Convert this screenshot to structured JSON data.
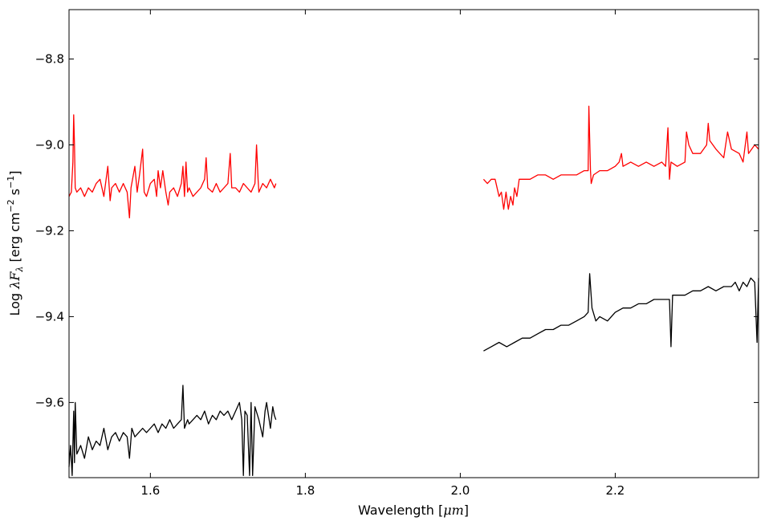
{
  "chart_data": {
    "type": "line",
    "xlabel_text": "Wavelength [",
    "xlabel_unit": "μm",
    "xlabel_end": "]",
    "ylabel_text": "Log ",
    "ylabel_math": "λF",
    "ylabel_sub": "λ",
    "ylabel_unit": " [erg cm",
    "ylabel_sup1": "−2",
    "ylabel_mid": " s",
    "ylabel_sup2": "−1",
    "ylabel_end": "]",
    "xlim": [
      1.495,
      2.385
    ],
    "ylim": [
      -9.775,
      -8.685
    ],
    "xticks": [
      {
        "value": 1.6,
        "label": "1.6"
      },
      {
        "value": 1.8,
        "label": "1.8"
      },
      {
        "value": 2.0,
        "label": "2.0"
      },
      {
        "value": 2.2,
        "label": "2.2"
      }
    ],
    "yticks": [
      {
        "value": -8.8,
        "label": "−8.8"
      },
      {
        "value": -9.0,
        "label": "−9.0"
      },
      {
        "value": -9.2,
        "label": "−9.2"
      },
      {
        "value": -9.4,
        "label": "−9.4"
      },
      {
        "value": -9.6,
        "label": "−9.6"
      }
    ],
    "grid": false,
    "series": [
      {
        "color": "#ff0000",
        "segments": [
          [
            [
              1.495,
              -9.12
            ],
            [
              1.498,
              -9.11
            ],
            [
              1.5,
              -9.04
            ],
            [
              1.501,
              -8.93
            ],
            [
              1.502,
              -9.0
            ],
            [
              1.503,
              -9.1
            ],
            [
              1.505,
              -9.11
            ],
            [
              1.51,
              -9.1
            ],
            [
              1.515,
              -9.12
            ],
            [
              1.52,
              -9.1
            ],
            [
              1.525,
              -9.11
            ],
            [
              1.53,
              -9.09
            ],
            [
              1.535,
              -9.08
            ],
            [
              1.54,
              -9.12
            ],
            [
              1.545,
              -9.05
            ],
            [
              1.548,
              -9.13
            ],
            [
              1.55,
              -9.1
            ],
            [
              1.555,
              -9.09
            ],
            [
              1.56,
              -9.11
            ],
            [
              1.565,
              -9.09
            ],
            [
              1.57,
              -9.11
            ],
            [
              1.573,
              -9.17
            ],
            [
              1.575,
              -9.1
            ],
            [
              1.58,
              -9.05
            ],
            [
              1.583,
              -9.11
            ],
            [
              1.586,
              -9.07
            ],
            [
              1.59,
              -9.01
            ],
            [
              1.592,
              -9.11
            ],
            [
              1.595,
              -9.12
            ],
            [
              1.6,
              -9.09
            ],
            [
              1.605,
              -9.08
            ],
            [
              1.608,
              -9.12
            ],
            [
              1.61,
              -9.06
            ],
            [
              1.613,
              -9.1
            ],
            [
              1.616,
              -9.06
            ],
            [
              1.62,
              -9.11
            ],
            [
              1.623,
              -9.14
            ],
            [
              1.625,
              -9.11
            ],
            [
              1.63,
              -9.1
            ],
            [
              1.635,
              -9.12
            ],
            [
              1.64,
              -9.09
            ],
            [
              1.642,
              -9.05
            ],
            [
              1.644,
              -9.12
            ],
            [
              1.646,
              -9.04
            ],
            [
              1.648,
              -9.11
            ],
            [
              1.65,
              -9.1
            ],
            [
              1.655,
              -9.12
            ],
            [
              1.66,
              -9.11
            ],
            [
              1.665,
              -9.1
            ],
            [
              1.67,
              -9.08
            ],
            [
              1.672,
              -9.03
            ],
            [
              1.674,
              -9.1
            ],
            [
              1.68,
              -9.11
            ],
            [
              1.685,
              -9.09
            ],
            [
              1.69,
              -9.11
            ],
            [
              1.695,
              -9.1
            ],
            [
              1.7,
              -9.09
            ],
            [
              1.703,
              -9.02
            ],
            [
              1.705,
              -9.1
            ],
            [
              1.71,
              -9.1
            ],
            [
              1.715,
              -9.11
            ],
            [
              1.72,
              -9.09
            ],
            [
              1.725,
              -9.1
            ],
            [
              1.73,
              -9.11
            ],
            [
              1.735,
              -9.09
            ],
            [
              1.737,
              -9.0
            ],
            [
              1.739,
              -9.08
            ],
            [
              1.74,
              -9.11
            ],
            [
              1.745,
              -9.09
            ],
            [
              1.75,
              -9.1
            ],
            [
              1.755,
              -9.08
            ],
            [
              1.76,
              -9.1
            ],
            [
              1.762,
              -9.09
            ]
          ],
          [
            [
              2.03,
              -9.08
            ],
            [
              2.035,
              -9.09
            ],
            [
              2.04,
              -9.08
            ],
            [
              2.045,
              -9.08
            ],
            [
              2.05,
              -9.12
            ],
            [
              2.053,
              -9.11
            ],
            [
              2.056,
              -9.15
            ],
            [
              2.059,
              -9.11
            ],
            [
              2.062,
              -9.15
            ],
            [
              2.065,
              -9.12
            ],
            [
              2.068,
              -9.14
            ],
            [
              2.07,
              -9.1
            ],
            [
              2.073,
              -9.12
            ],
            [
              2.076,
              -9.08
            ],
            [
              2.08,
              -9.08
            ],
            [
              2.09,
              -9.08
            ],
            [
              2.1,
              -9.07
            ],
            [
              2.11,
              -9.07
            ],
            [
              2.12,
              -9.08
            ],
            [
              2.13,
              -9.07
            ],
            [
              2.14,
              -9.07
            ],
            [
              2.15,
              -9.07
            ],
            [
              2.16,
              -9.06
            ],
            [
              2.165,
              -9.06
            ],
            [
              2.166,
              -8.91
            ],
            [
              2.168,
              -9.06
            ],
            [
              2.169,
              -9.09
            ],
            [
              2.172,
              -9.07
            ],
            [
              2.18,
              -9.06
            ],
            [
              2.19,
              -9.06
            ],
            [
              2.2,
              -9.05
            ],
            [
              2.205,
              -9.04
            ],
            [
              2.208,
              -9.02
            ],
            [
              2.21,
              -9.05
            ],
            [
              2.22,
              -9.04
            ],
            [
              2.23,
              -9.05
            ],
            [
              2.24,
              -9.04
            ],
            [
              2.25,
              -9.05
            ],
            [
              2.26,
              -9.04
            ],
            [
              2.265,
              -9.05
            ],
            [
              2.268,
              -8.96
            ],
            [
              2.27,
              -9.08
            ],
            [
              2.272,
              -9.04
            ],
            [
              2.28,
              -9.05
            ],
            [
              2.29,
              -9.04
            ],
            [
              2.292,
              -8.97
            ],
            [
              2.295,
              -9.0
            ],
            [
              2.3,
              -9.02
            ],
            [
              2.31,
              -9.02
            ],
            [
              2.318,
              -9.0
            ],
            [
              2.32,
              -8.95
            ],
            [
              2.322,
              -8.99
            ],
            [
              2.33,
              -9.01
            ],
            [
              2.34,
              -9.03
            ],
            [
              2.345,
              -8.97
            ],
            [
              2.35,
              -9.01
            ],
            [
              2.36,
              -9.02
            ],
            [
              2.365,
              -9.04
            ],
            [
              2.37,
              -8.97
            ],
            [
              2.372,
              -9.02
            ],
            [
              2.38,
              -9.0
            ],
            [
              2.385,
              -9.01
            ]
          ]
        ]
      },
      {
        "color": "#000000",
        "segments": [
          [
            [
              1.495,
              -9.75
            ],
            [
              1.497,
              -9.7
            ],
            [
              1.499,
              -9.77
            ],
            [
              1.501,
              -9.62
            ],
            [
              1.502,
              -9.74
            ],
            [
              1.503,
              -9.6
            ],
            [
              1.505,
              -9.72
            ],
            [
              1.51,
              -9.7
            ],
            [
              1.515,
              -9.73
            ],
            [
              1.52,
              -9.68
            ],
            [
              1.525,
              -9.71
            ],
            [
              1.53,
              -9.69
            ],
            [
              1.535,
              -9.7
            ],
            [
              1.54,
              -9.66
            ],
            [
              1.545,
              -9.71
            ],
            [
              1.55,
              -9.68
            ],
            [
              1.555,
              -9.67
            ],
            [
              1.56,
              -9.69
            ],
            [
              1.565,
              -9.67
            ],
            [
              1.57,
              -9.68
            ],
            [
              1.573,
              -9.73
            ],
            [
              1.576,
              -9.66
            ],
            [
              1.58,
              -9.68
            ],
            [
              1.585,
              -9.67
            ],
            [
              1.59,
              -9.66
            ],
            [
              1.595,
              -9.67
            ],
            [
              1.6,
              -9.66
            ],
            [
              1.605,
              -9.65
            ],
            [
              1.61,
              -9.67
            ],
            [
              1.615,
              -9.65
            ],
            [
              1.62,
              -9.66
            ],
            [
              1.625,
              -9.64
            ],
            [
              1.63,
              -9.66
            ],
            [
              1.635,
              -9.65
            ],
            [
              1.64,
              -9.64
            ],
            [
              1.642,
              -9.56
            ],
            [
              1.644,
              -9.66
            ],
            [
              1.648,
              -9.64
            ],
            [
              1.65,
              -9.65
            ],
            [
              1.655,
              -9.64
            ],
            [
              1.66,
              -9.63
            ],
            [
              1.665,
              -9.64
            ],
            [
              1.67,
              -9.62
            ],
            [
              1.675,
              -9.65
            ],
            [
              1.68,
              -9.63
            ],
            [
              1.685,
              -9.64
            ],
            [
              1.69,
              -9.62
            ],
            [
              1.695,
              -9.63
            ],
            [
              1.7,
              -9.62
            ],
            [
              1.705,
              -9.64
            ],
            [
              1.71,
              -9.62
            ],
            [
              1.715,
              -9.6
            ],
            [
              1.718,
              -9.64
            ],
            [
              1.72,
              -9.77
            ],
            [
              1.722,
              -9.62
            ],
            [
              1.725,
              -9.63
            ],
            [
              1.728,
              -9.77
            ],
            [
              1.73,
              -9.6
            ],
            [
              1.732,
              -9.77
            ],
            [
              1.735,
              -9.61
            ],
            [
              1.74,
              -9.64
            ],
            [
              1.745,
              -9.68
            ],
            [
              1.748,
              -9.62
            ],
            [
              1.75,
              -9.6
            ],
            [
              1.755,
              -9.66
            ],
            [
              1.758,
              -9.61
            ],
            [
              1.76,
              -9.63
            ],
            [
              1.762,
              -9.64
            ]
          ],
          [
            [
              2.03,
              -9.48
            ],
            [
              2.04,
              -9.47
            ],
            [
              2.05,
              -9.46
            ],
            [
              2.06,
              -9.47
            ],
            [
              2.07,
              -9.46
            ],
            [
              2.08,
              -9.45
            ],
            [
              2.09,
              -9.45
            ],
            [
              2.1,
              -9.44
            ],
            [
              2.11,
              -9.43
            ],
            [
              2.12,
              -9.43
            ],
            [
              2.13,
              -9.42
            ],
            [
              2.14,
              -9.42
            ],
            [
              2.15,
              -9.41
            ],
            [
              2.16,
              -9.4
            ],
            [
              2.165,
              -9.39
            ],
            [
              2.167,
              -9.3
            ],
            [
              2.17,
              -9.38
            ],
            [
              2.175,
              -9.41
            ],
            [
              2.18,
              -9.4
            ],
            [
              2.19,
              -9.41
            ],
            [
              2.2,
              -9.39
            ],
            [
              2.21,
              -9.38
            ],
            [
              2.22,
              -9.38
            ],
            [
              2.23,
              -9.37
            ],
            [
              2.24,
              -9.37
            ],
            [
              2.25,
              -9.36
            ],
            [
              2.26,
              -9.36
            ],
            [
              2.27,
              -9.36
            ],
            [
              2.272,
              -9.47
            ],
            [
              2.274,
              -9.35
            ],
            [
              2.28,
              -9.35
            ],
            [
              2.29,
              -9.35
            ],
            [
              2.3,
              -9.34
            ],
            [
              2.31,
              -9.34
            ],
            [
              2.32,
              -9.33
            ],
            [
              2.33,
              -9.34
            ],
            [
              2.34,
              -9.33
            ],
            [
              2.35,
              -9.33
            ],
            [
              2.355,
              -9.32
            ],
            [
              2.36,
              -9.34
            ],
            [
              2.365,
              -9.32
            ],
            [
              2.37,
              -9.33
            ],
            [
              2.375,
              -9.31
            ],
            [
              2.38,
              -9.32
            ],
            [
              2.383,
              -9.46
            ],
            [
              2.385,
              -9.31
            ]
          ]
        ]
      }
    ]
  }
}
